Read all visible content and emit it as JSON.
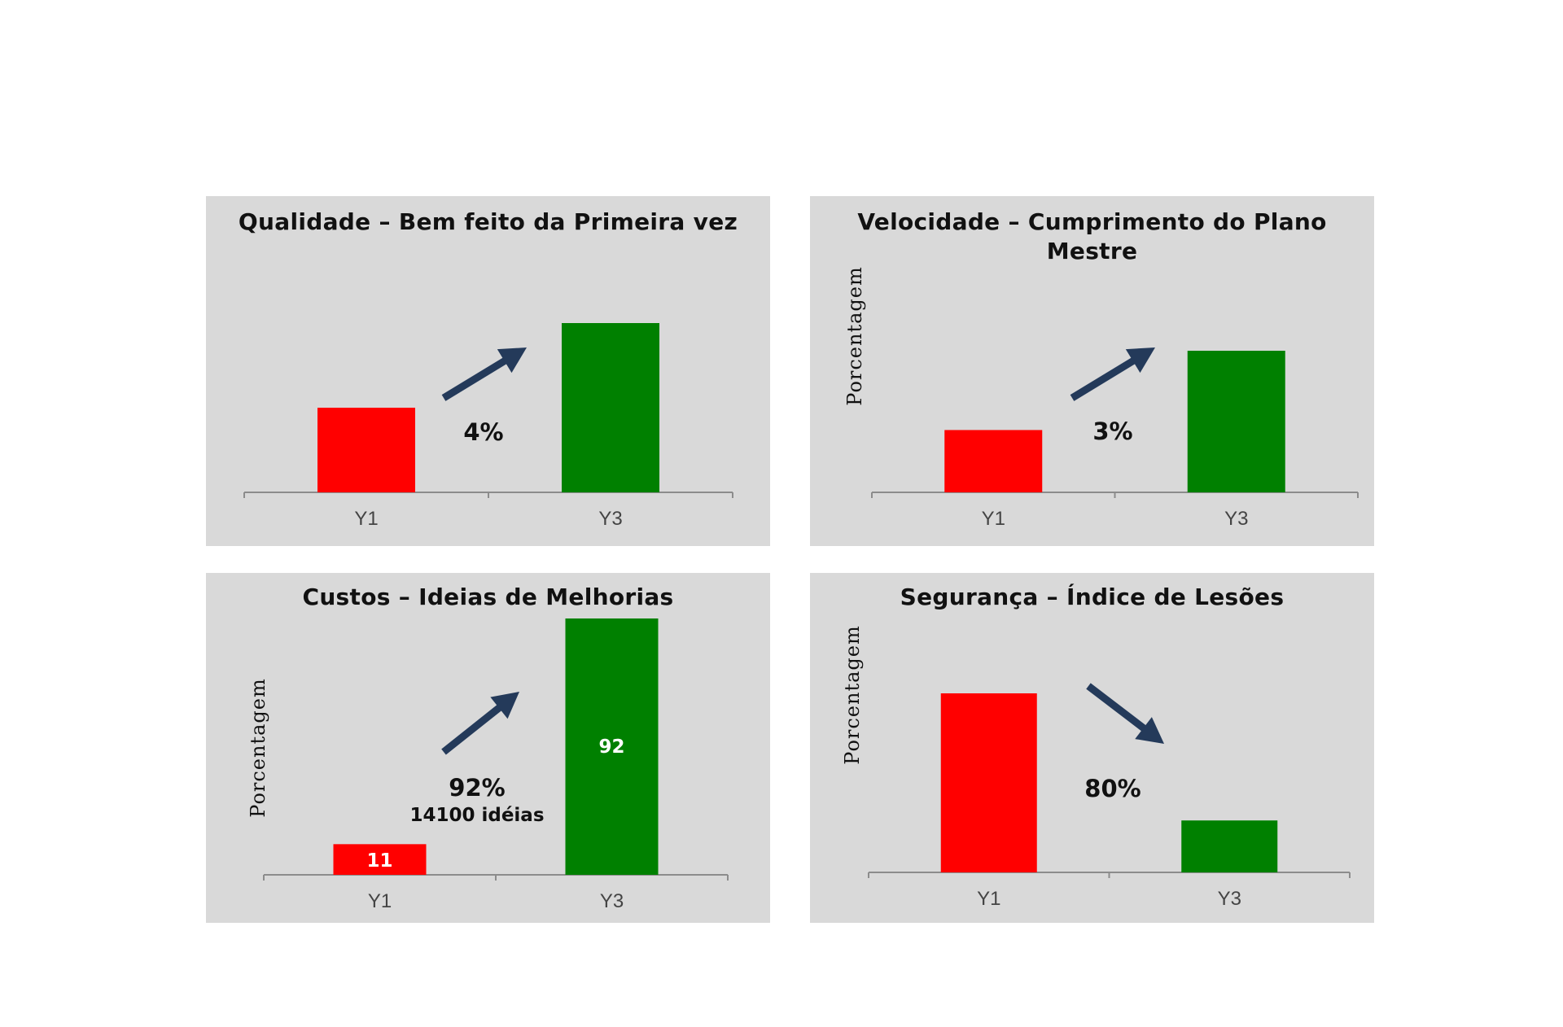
{
  "chart_data": [
    {
      "type": "bar",
      "title": "Qualidade – Bem feito da Primeira vez",
      "ylabel": "",
      "categories": [
        "Y1",
        "Y3"
      ],
      "values": [
        50,
        100
      ],
      "ylim": [
        0,
        100
      ],
      "data_labels": [],
      "change_label": "4%",
      "change_note": "",
      "trend": "up",
      "colors": [
        "#ff0000",
        "#008000"
      ],
      "grid": false,
      "legend": "none"
    },
    {
      "type": "bar",
      "title": "Velocidade – Cumprimento do Plano Mestre",
      "ylabel": "Porcentagem",
      "categories": [
        "Y1",
        "Y3"
      ],
      "values": [
        44,
        100
      ],
      "ylim": [
        0,
        100
      ],
      "data_labels": [],
      "change_label": "3%",
      "change_note": "",
      "trend": "up",
      "colors": [
        "#ff0000",
        "#008000"
      ],
      "grid": false,
      "legend": "none"
    },
    {
      "type": "bar",
      "title": "Custos – Ideias de Melhorias",
      "ylabel": "Porcentagem",
      "categories": [
        "Y1",
        "Y3"
      ],
      "values": [
        11,
        92
      ],
      "ylim": [
        0,
        92
      ],
      "data_labels": [
        "11",
        "92"
      ],
      "change_label": "92%",
      "change_note": "14100 idéias",
      "trend": "up",
      "colors": [
        "#ff0000",
        "#008000"
      ],
      "grid": false,
      "legend": "none"
    },
    {
      "type": "bar",
      "title": "Segurança – Índice de Lesões",
      "ylabel": "Porcentagem",
      "categories": [
        "Y1",
        "Y3"
      ],
      "values": [
        100,
        29
      ],
      "ylim": [
        0,
        100
      ],
      "data_labels": [],
      "change_label": "80%",
      "change_note": "",
      "trend": "down",
      "colors": [
        "#ff0000",
        "#008000"
      ],
      "grid": false,
      "legend": "none"
    }
  ]
}
